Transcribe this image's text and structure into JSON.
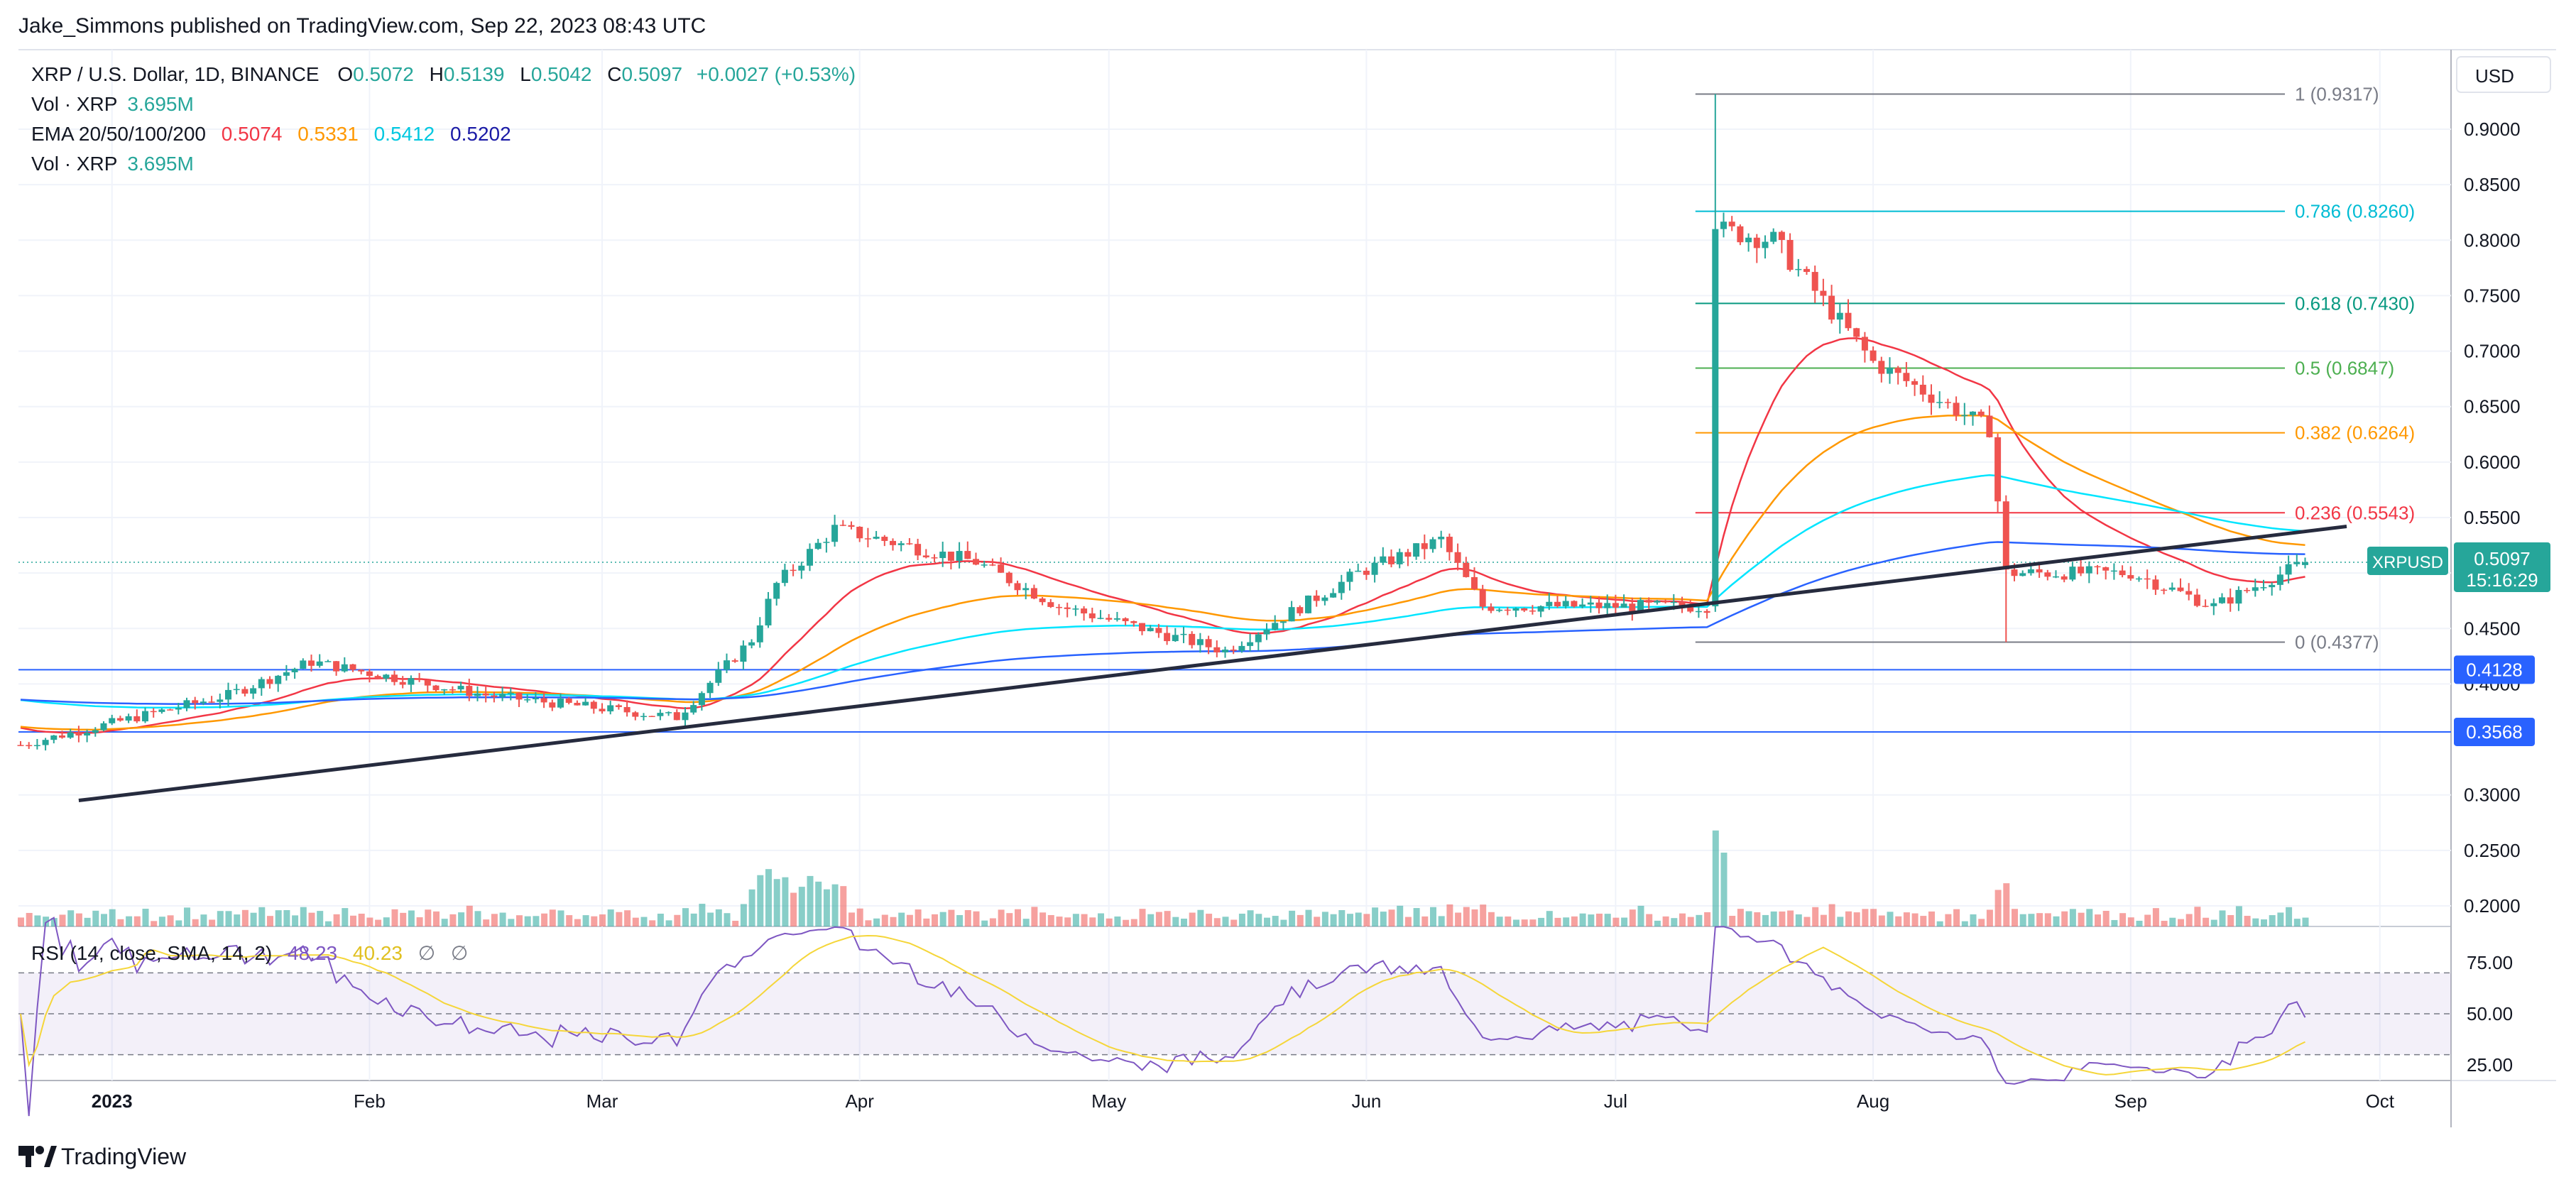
{
  "header": {
    "published": "Jake_Simmons published on TradingView.com, Sep 22, 2023 08:43 UTC"
  },
  "legend": {
    "symbol": "XRP / U.S. Dollar, 1D, BINANCE",
    "o_label": "O",
    "o_value": "0.5072",
    "h_label": "H",
    "h_value": "0.5139",
    "l_label": "L",
    "l_value": "0.5042",
    "c_label": "C",
    "c_value": "0.5097",
    "change": "+0.0027 (+0.53%)",
    "vol1_label": "Vol · XRP",
    "vol1_value": "3.695M",
    "ema_label": "EMA 20/50/100/200",
    "ema20_value": "0.5074",
    "ema50_value": "0.5331",
    "ema100_value": "0.5412",
    "ema200_value": "0.5202",
    "vol2_label": "Vol · XRP",
    "vol2_value": "3.695M"
  },
  "currency_button": "USD",
  "price_axis_ticks": [
    "0.9000",
    "0.8500",
    "0.8000",
    "0.7500",
    "0.7000",
    "0.6500",
    "0.6000",
    "0.5500",
    "0.5000",
    "0.4500",
    "0.4000",
    "0.3000",
    "0.2500",
    "0.2000"
  ],
  "rsi": {
    "label": "RSI (14, close, SMA, 14, 2)",
    "rsi_value": "48.23",
    "sma_value": "40.23",
    "empty1": "∅",
    "empty2": "∅",
    "ticks": [
      "75.00",
      "50.00",
      "25.00"
    ],
    "levels": [
      70,
      50,
      30
    ]
  },
  "time_axis": [
    "2023",
    "Feb",
    "Mar",
    "Apr",
    "May",
    "Jun",
    "Jul",
    "Aug",
    "Sep",
    "Oct"
  ],
  "fib_levels": [
    {
      "label": "1 (0.9317)",
      "value": 0.9317,
      "color": "#787b86"
    },
    {
      "label": "0.786 (0.8260)",
      "value": 0.826,
      "color": "#00bcd4"
    },
    {
      "label": "0.618 (0.7430)",
      "value": 0.743,
      "color": "#089981"
    },
    {
      "label": "0.5 (0.6847)",
      "value": 0.6847,
      "color": "#4caf50"
    },
    {
      "label": "0.382 (0.6264)",
      "value": 0.6264,
      "color": "#ff9800"
    },
    {
      "label": "0.236 (0.5543)",
      "value": 0.5543,
      "color": "#f23645"
    },
    {
      "label": "0 (0.4377)",
      "value": 0.4377,
      "color": "#787b86"
    }
  ],
  "badges": {
    "current_symbol": "XRPUSD",
    "current_price": "0.5097",
    "countdown": "15:16:29",
    "level1": "0.4128",
    "level2": "0.3568"
  },
  "colors": {
    "up": "#26a69a",
    "down": "#ef5350",
    "ema20": "#f23645",
    "ema50": "#ff9800",
    "ema100": "#00e5ff",
    "ema200": "#2962ff",
    "rsi": "#7e57c2",
    "rsi_sma": "#f5d63a",
    "level_line": "#2962ff",
    "trendline": "#262b3e"
  },
  "footer": {
    "brand": "TradingView"
  },
  "chart_data": {
    "type": "candlestick",
    "title": "XRP / U.S. Dollar, 1D, BINANCE",
    "ylim": [
      0.18,
      0.965
    ],
    "x_axis": [
      "2023",
      "Feb",
      "Mar",
      "Apr",
      "May",
      "Jun",
      "Jul",
      "Aug",
      "Sep",
      "Oct"
    ],
    "key_points": [
      {
        "date": "2022-12-21",
        "close": 0.345
      },
      {
        "date": "2023-01-15",
        "close": 0.39
      },
      {
        "date": "2023-01-25",
        "close": 0.42
      },
      {
        "date": "2023-02-15",
        "close": 0.39
      },
      {
        "date": "2023-03-10",
        "close": 0.37
      },
      {
        "date": "2023-03-19",
        "close": 0.44
      },
      {
        "date": "2023-03-22",
        "close": 0.49
      },
      {
        "date": "2023-03-29",
        "close": 0.54
      },
      {
        "date": "2023-04-15",
        "close": 0.51
      },
      {
        "date": "2023-04-25",
        "close": 0.47
      },
      {
        "date": "2023-05-15",
        "close": 0.43
      },
      {
        "date": "2023-05-31",
        "close": 0.5
      },
      {
        "date": "2023-06-10",
        "close": 0.53
      },
      {
        "date": "2023-06-15",
        "close": 0.47
      },
      {
        "date": "2023-07-12",
        "close": 0.47
      },
      {
        "date": "2023-07-13",
        "close": 0.81
      },
      {
        "date": "2023-07-20",
        "close": 0.8
      },
      {
        "date": "2023-08-01",
        "close": 0.69
      },
      {
        "date": "2023-08-15",
        "close": 0.63
      },
      {
        "date": "2023-08-17",
        "close": 0.5
      },
      {
        "date": "2023-09-01",
        "close": 0.5
      },
      {
        "date": "2023-09-11",
        "close": 0.47
      },
      {
        "date": "2023-09-22",
        "close": 0.5097
      }
    ],
    "last_ohlc": {
      "open": 0.5072,
      "high": 0.5139,
      "low": 0.5042,
      "close": 0.5097
    },
    "horizontal_levels": [
      0.4128,
      0.3568
    ],
    "trendline": [
      {
        "date": "2022-12-28",
        "price": 0.295
      },
      {
        "date": "2023-09-27",
        "price": 0.542
      }
    ],
    "fib_range": {
      "high": 0.9317,
      "low": 0.4377
    },
    "rsi_last": 48.23,
    "rsi_sma_last": 40.23
  }
}
